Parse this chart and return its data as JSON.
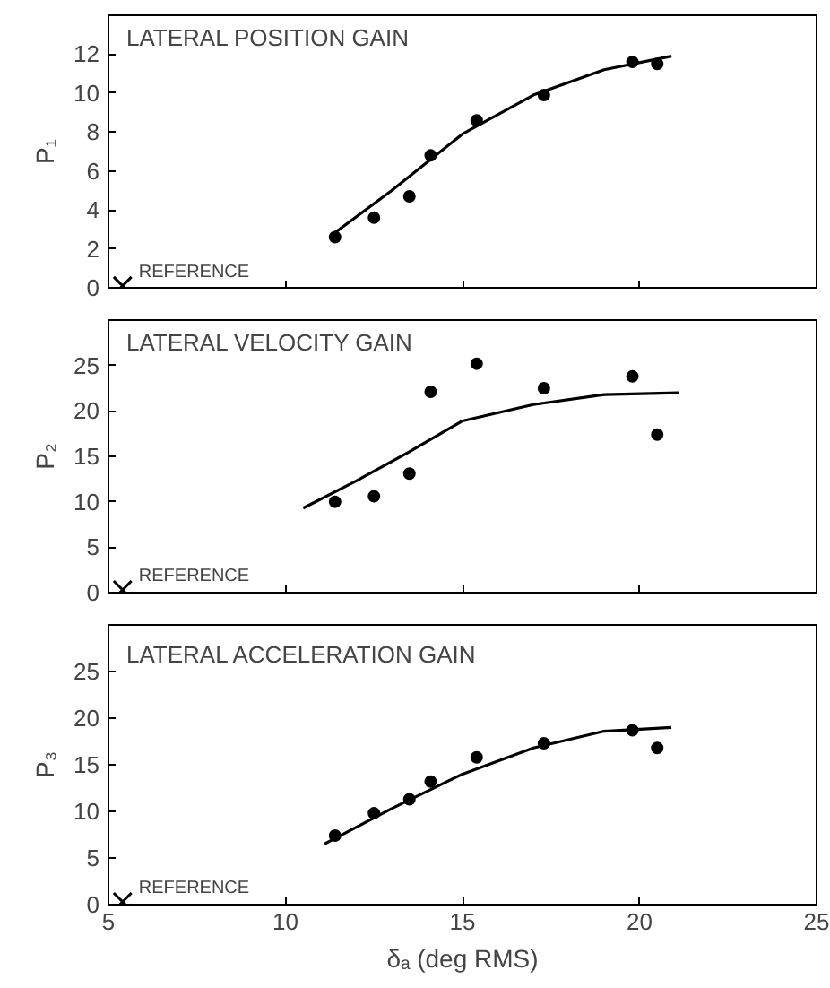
{
  "chart_data": [
    {
      "type": "scatter",
      "title": "LATERAL POSITION GAIN",
      "ylabel": "P₁",
      "xlim": [
        5,
        25
      ],
      "xticks": [
        5,
        10,
        15,
        20,
        25
      ],
      "ylim": [
        0,
        14
      ],
      "yticks": [
        0,
        2,
        4,
        6,
        8,
        10,
        12
      ],
      "tick_labels": "y",
      "series": [
        {
          "marker": "circle",
          "color": "#000000",
          "x": [
            11.4,
            12.5,
            13.5,
            14.1,
            15.4,
            17.3,
            19.8,
            20.5
          ],
          "values": [
            2.6,
            3.6,
            4.7,
            6.8,
            8.6,
            9.9,
            11.6,
            11.5
          ]
        },
        {
          "type": "line",
          "color": "#000000",
          "x": [
            11.3,
            13,
            15,
            17,
            19,
            20.9
          ],
          "values": [
            2.7,
            5.0,
            7.9,
            9.9,
            11.2,
            11.9
          ]
        },
        {
          "name": "REFERENCE",
          "marker": "cross",
          "color": "#000000",
          "x": [
            5.4
          ],
          "values": [
            0.1
          ]
        }
      ]
    },
    {
      "type": "scatter",
      "title": "LATERAL VELOCITY GAIN",
      "ylabel": "P₂",
      "xlim": [
        5,
        25
      ],
      "xticks": [
        5,
        10,
        15,
        20,
        25
      ],
      "ylim": [
        0,
        30
      ],
      "yticks": [
        0,
        5,
        10,
        15,
        20,
        25
      ],
      "tick_labels": "y",
      "series": [
        {
          "marker": "circle",
          "color": "#000000",
          "x": [
            11.4,
            12.5,
            13.5,
            14.1,
            15.4,
            17.3,
            19.8,
            20.5
          ],
          "values": [
            10.0,
            10.6,
            13.1,
            22.1,
            25.2,
            22.5,
            23.8,
            17.4
          ]
        },
        {
          "type": "line",
          "color": "#000000",
          "x": [
            10.5,
            12,
            13.5,
            15,
            17,
            19,
            21.1
          ],
          "values": [
            9.3,
            12.3,
            15.5,
            18.9,
            20.7,
            21.8,
            22.0
          ]
        },
        {
          "name": "REFERENCE",
          "marker": "cross",
          "color": "#000000",
          "x": [
            5.4
          ],
          "values": [
            0.3
          ]
        }
      ]
    },
    {
      "type": "scatter",
      "title": "LATERAL ACCELERATION GAIN",
      "ylabel": "P₃",
      "xlabel": "δₐ (deg RMS)",
      "xlim": [
        5,
        25
      ],
      "xticks": [
        5,
        10,
        15,
        20,
        25
      ],
      "ylim": [
        0,
        30
      ],
      "yticks": [
        0,
        5,
        10,
        15,
        20,
        25
      ],
      "series": [
        {
          "marker": "circle",
          "color": "#000000",
          "x": [
            11.4,
            12.5,
            13.5,
            14.1,
            15.4,
            17.3,
            19.8,
            20.5
          ],
          "values": [
            7.4,
            9.8,
            11.3,
            13.2,
            15.8,
            17.3,
            18.7,
            16.8
          ]
        },
        {
          "type": "line",
          "color": "#000000",
          "x": [
            11.1,
            13,
            15,
            17,
            19,
            20.9
          ],
          "values": [
            6.5,
            10.3,
            14.0,
            16.8,
            18.6,
            19.0
          ]
        },
        {
          "name": "REFERENCE",
          "marker": "cross",
          "color": "#000000",
          "x": [
            5.4
          ],
          "values": [
            0.3
          ]
        }
      ]
    }
  ]
}
